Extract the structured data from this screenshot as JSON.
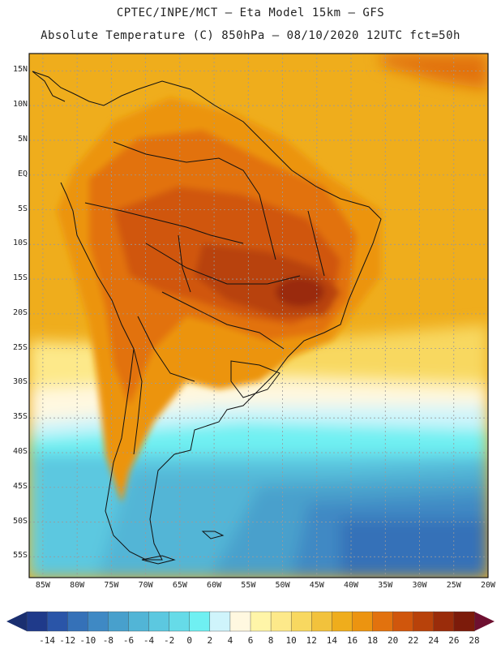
{
  "header": {
    "line1": "CPTEC/INPE/MCT –  Eta Model 15km – GFS",
    "line2": "Absolute Temperature (C) 850hPa – 08/10/2020 12UTC fct=50h"
  },
  "axes": {
    "lat_labels": [
      "15N",
      "10N",
      "5N",
      "EQ",
      "5S",
      "10S",
      "15S",
      "20S",
      "25S",
      "30S",
      "35S",
      "40S",
      "45S",
      "50S",
      "55S"
    ],
    "lat_values": [
      15,
      10,
      5,
      0,
      -5,
      -10,
      -15,
      -20,
      -25,
      -30,
      -35,
      -40,
      -45,
      -50,
      -55
    ],
    "lon_labels": [
      "85W",
      "80W",
      "75W",
      "70W",
      "65W",
      "60W",
      "55W",
      "50W",
      "45W",
      "40W",
      "35W",
      "30W",
      "25W",
      "20W"
    ],
    "lon_values": [
      -85,
      -80,
      -75,
      -70,
      -65,
      -60,
      -55,
      -50,
      -45,
      -40,
      -35,
      -30,
      -25,
      -20
    ]
  },
  "colorbar": {
    "labels": [
      "-14",
      "-12",
      "-10",
      "-8",
      "-6",
      "-4",
      "-2",
      "0",
      "2",
      "4",
      "6",
      "8",
      "10",
      "12",
      "14",
      "16",
      "18",
      "20",
      "22",
      "24",
      "26",
      "28"
    ],
    "colors": [
      "#1f3a8a",
      "#2a55a8",
      "#3571b8",
      "#3f89c4",
      "#48a0cc",
      "#52b5d6",
      "#5cc8e0",
      "#66dbe8",
      "#6ff0f2",
      "#cff4fb",
      "#fff8e0",
      "#fff5a8",
      "#fde98a",
      "#f8d860",
      "#f2c23c",
      "#efad1c",
      "#ec9410",
      "#e2720e",
      "#d0560c",
      "#b8420a",
      "#9a2c0a",
      "#7c1b0a"
    ],
    "low_color": "#1a2f70",
    "high_color": "#6e1030"
  },
  "colors": {
    "ocean_warm": "#efad1c",
    "land_hot": "#d0560c",
    "cold": "#52b5d6",
    "border": "#111111",
    "grid": "#9a9a9a"
  }
}
